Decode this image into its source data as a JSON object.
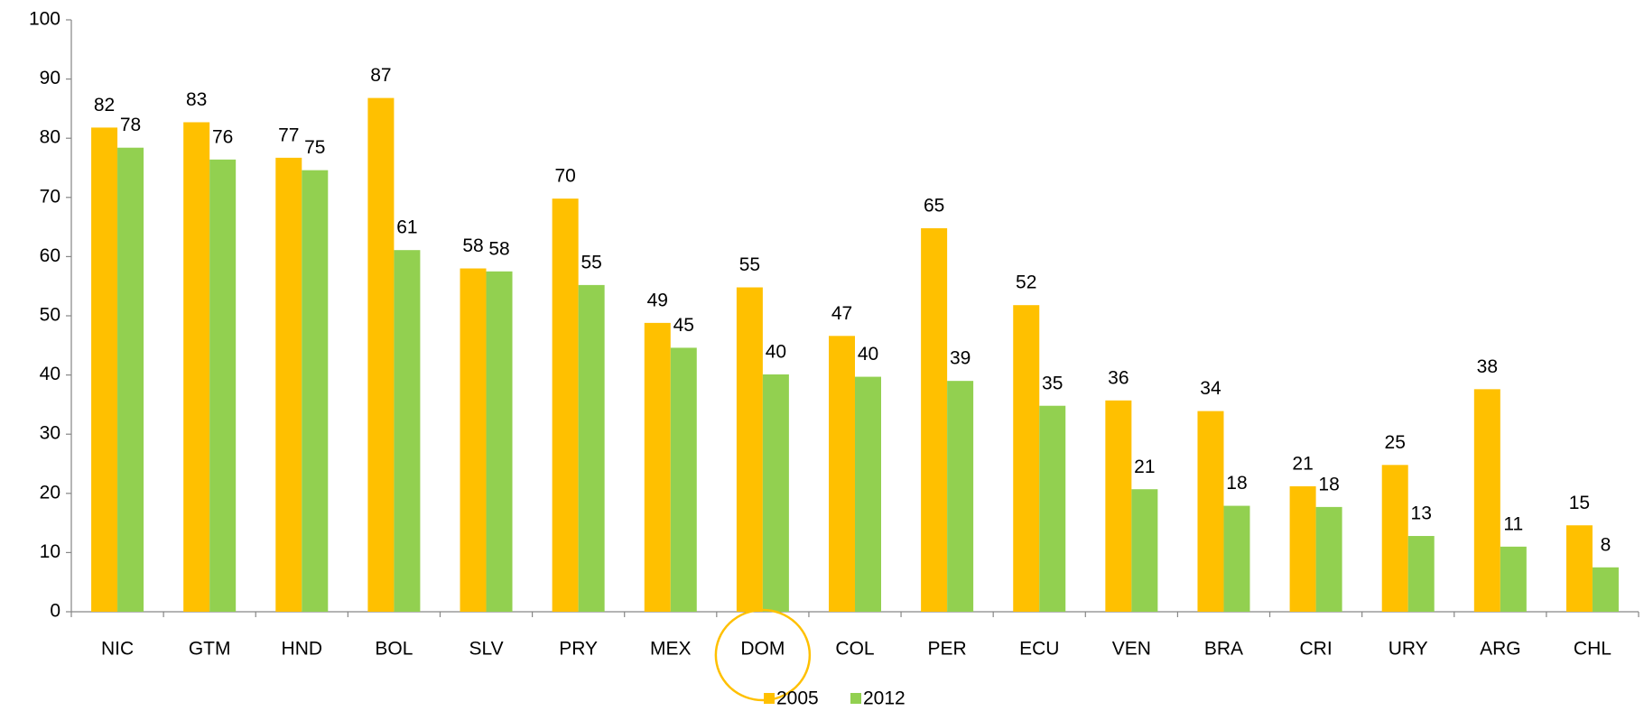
{
  "chart_data": {
    "type": "bar",
    "categories": [
      "NIC",
      "GTM",
      "HND",
      "BOL",
      "SLV",
      "PRY",
      "MEX",
      "DOM",
      "COL",
      "PER",
      "ECU",
      "VEN",
      "BRA",
      "CRI",
      "URY",
      "ARG",
      "CHL"
    ],
    "series": [
      {
        "name": "2005",
        "color": "#ffc000",
        "values": [
          81.8,
          82.7,
          76.7,
          86.8,
          58.0,
          69.8,
          48.8,
          54.8,
          46.6,
          64.8,
          51.8,
          35.7,
          33.9,
          21.2,
          24.8,
          37.6,
          14.6
        ],
        "value_labels": [
          "82",
          "83",
          "77",
          "87",
          "58",
          "70",
          "49",
          "55",
          "47",
          "65",
          "52",
          "36",
          "34",
          "21",
          "25",
          "38",
          "15"
        ]
      },
      {
        "name": "2012",
        "color": "#92d050",
        "values": [
          78.4,
          76.4,
          74.6,
          61.1,
          57.5,
          55.2,
          44.6,
          40.1,
          39.7,
          39.0,
          34.8,
          20.7,
          17.9,
          17.7,
          12.8,
          11.0,
          7.5
        ],
        "value_labels": [
          "78",
          "76",
          "75",
          "61",
          "58",
          "55",
          "45",
          "40",
          "40",
          "39",
          "35",
          "21",
          "18",
          "18",
          "13",
          "11",
          "8"
        ]
      }
    ],
    "ylim": [
      0,
      100
    ],
    "yticks": [
      0,
      10,
      20,
      30,
      40,
      50,
      60,
      70,
      80,
      90,
      100
    ],
    "grid": false,
    "legend": "bottom"
  }
}
